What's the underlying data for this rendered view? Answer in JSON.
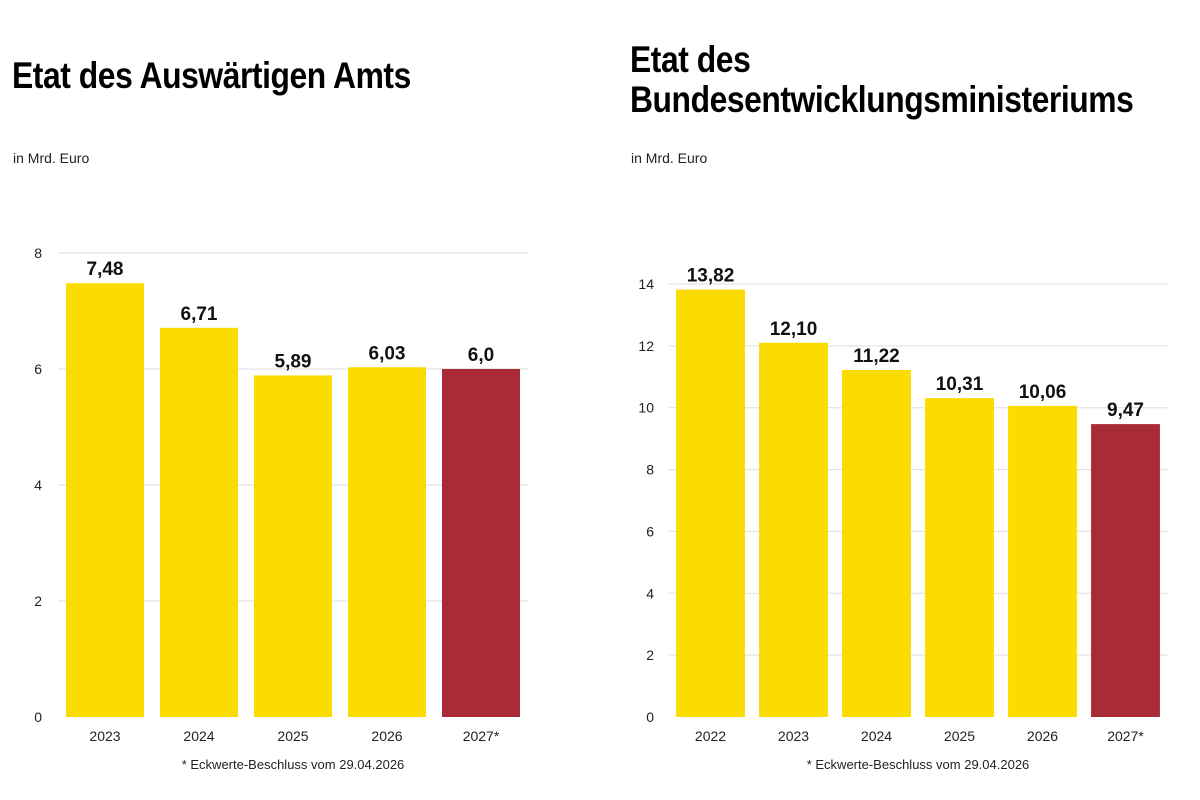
{
  "chart_data": [
    {
      "type": "bar",
      "title": "Etat des Auswärtigen Amts",
      "subtitle": "in Mrd. Euro",
      "categories": [
        "2023",
        "2024",
        "2025",
        "2026",
        "2027*"
      ],
      "values": [
        7.48,
        6.71,
        5.89,
        6.03,
        6.0
      ],
      "data_labels": [
        "7,48",
        "6,71",
        "5,89",
        "6,03",
        "6,0"
      ],
      "yticks": [
        0,
        2,
        4,
        6,
        8
      ],
      "ylim": [
        0,
        8
      ],
      "grid": true,
      "bar_colors": [
        "#FBDC00",
        "#FBDC00",
        "#FBDC00",
        "#FBDC00",
        "#A92B37"
      ],
      "footnote": "* Eckwerte-Beschluss vom 29.04.2026"
    },
    {
      "type": "bar",
      "title_lines": [
        "Etat des",
        "Bundesentwicklungsministeriums"
      ],
      "subtitle": "in Mrd. Euro",
      "categories": [
        "2022",
        "2023",
        "2024",
        "2025",
        "2026",
        "2027*"
      ],
      "values": [
        13.82,
        12.1,
        11.22,
        10.31,
        10.06,
        9.47
      ],
      "data_labels": [
        "13,82",
        "12,10",
        "11,22",
        "10,31",
        "10,06",
        "9,47"
      ],
      "yticks": [
        0,
        2,
        4,
        6,
        8,
        10,
        12,
        14
      ],
      "ylim": [
        0,
        14
      ],
      "grid": true,
      "bar_colors": [
        "#FBDC00",
        "#FBDC00",
        "#FBDC00",
        "#FBDC00",
        "#FBDC00",
        "#A92B37"
      ],
      "footnote": "* Eckwerte-Beschluss vom 29.04.2026"
    }
  ]
}
